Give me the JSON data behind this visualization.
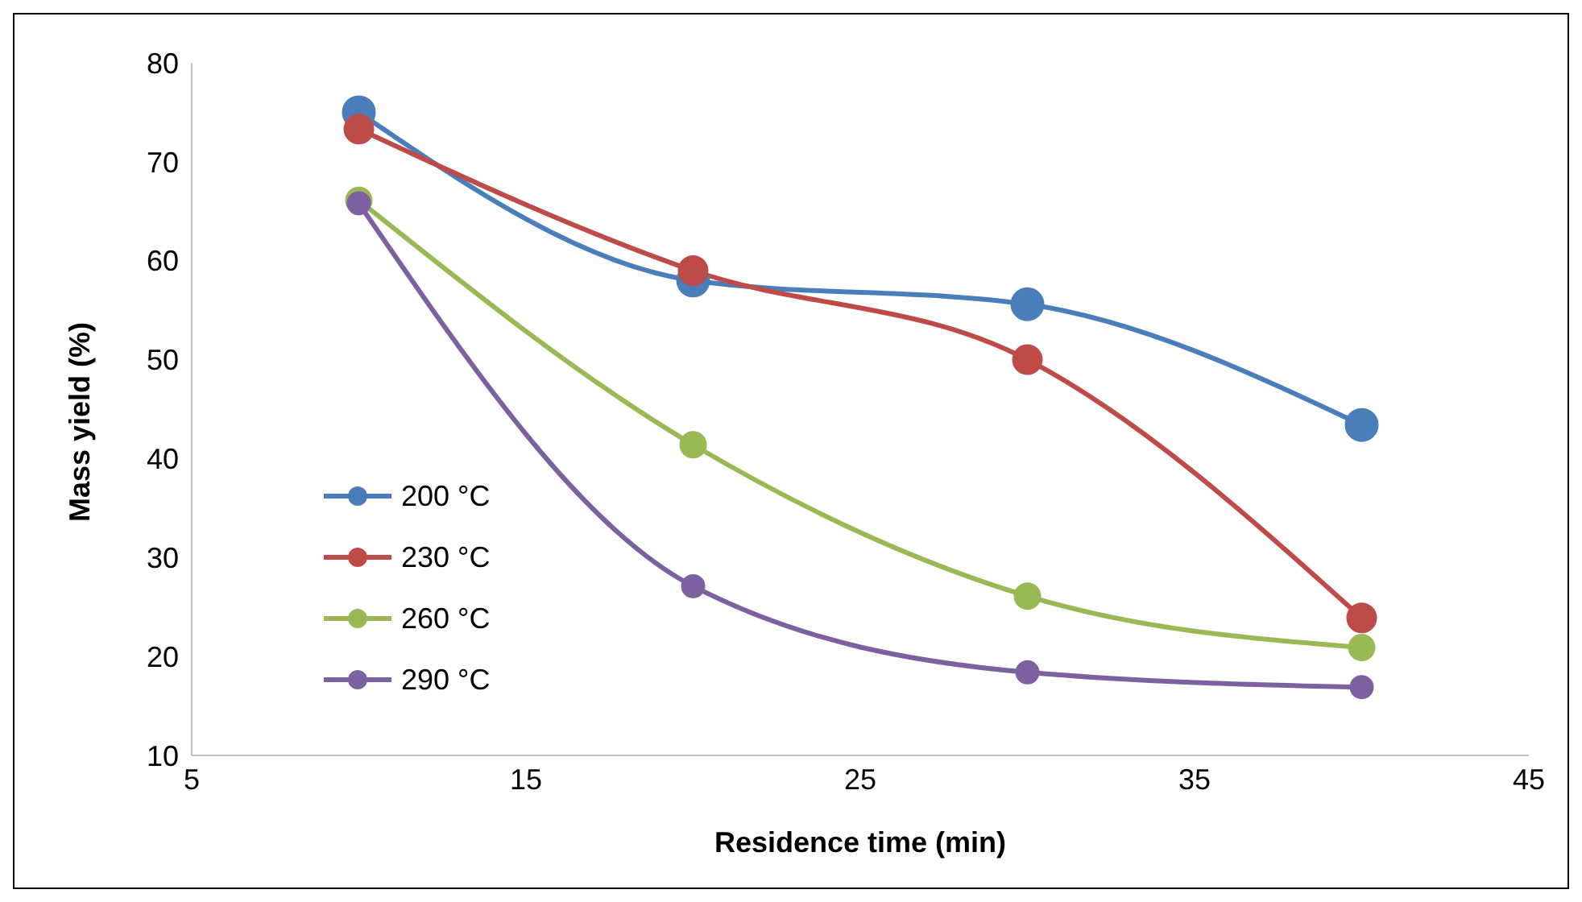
{
  "chart_data": {
    "type": "line",
    "xlabel": "Residence time (min)",
    "ylabel": "Mass yield (%)",
    "x": [
      10,
      20,
      30,
      40
    ],
    "series": [
      {
        "name": "200 °C",
        "color": "#4a7ebb",
        "values": [
          75,
          58,
          55.6,
          43.4
        ]
      },
      {
        "name": "230 °C",
        "color": "#be4b48",
        "values": [
          73.3,
          59,
          50,
          23.9
        ]
      },
      {
        "name": "260 °C",
        "color": "#98b954",
        "values": [
          66.1,
          41.4,
          26.1,
          20.9
        ]
      },
      {
        "name": "290 °C",
        "color": "#7d60a0",
        "values": [
          65.8,
          27.1,
          18.4,
          16.9
        ]
      }
    ],
    "xlim": [
      5,
      45
    ],
    "xticks": [
      5,
      15,
      25,
      35,
      45
    ],
    "ylim": [
      10,
      80
    ],
    "yticks": [
      10,
      20,
      30,
      40,
      50,
      60,
      70,
      80
    ],
    "grid": false,
    "legend": "left",
    "marker": "circle",
    "line_style": "solid"
  }
}
